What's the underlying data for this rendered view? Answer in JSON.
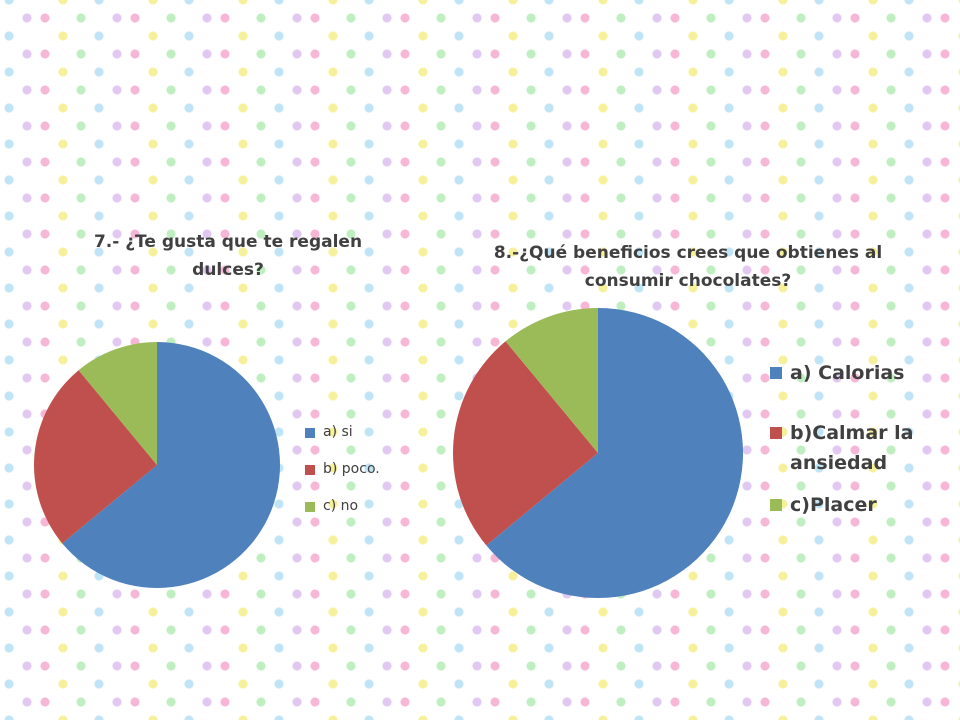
{
  "chart_data": [
    {
      "type": "pie",
      "title": "7.- ¿Te gusta que te regalen dulces?",
      "categories": [
        "a) si",
        "b) poco.",
        "c) no"
      ],
      "values": [
        64,
        25,
        11
      ],
      "colors": [
        "#4f81bd",
        "#c0504d",
        "#9bbb59"
      ]
    },
    {
      "type": "pie",
      "title": "8.-¿Qué beneficios crees que obtienes al consumir chocolates?",
      "categories": [
        "a) Calorias",
        "b)Calmar la ansiedad",
        "c)Placer"
      ],
      "values": [
        64,
        25,
        11
      ],
      "colors": [
        "#4f81bd",
        "#c0504d",
        "#9bbb59"
      ]
    }
  ]
}
